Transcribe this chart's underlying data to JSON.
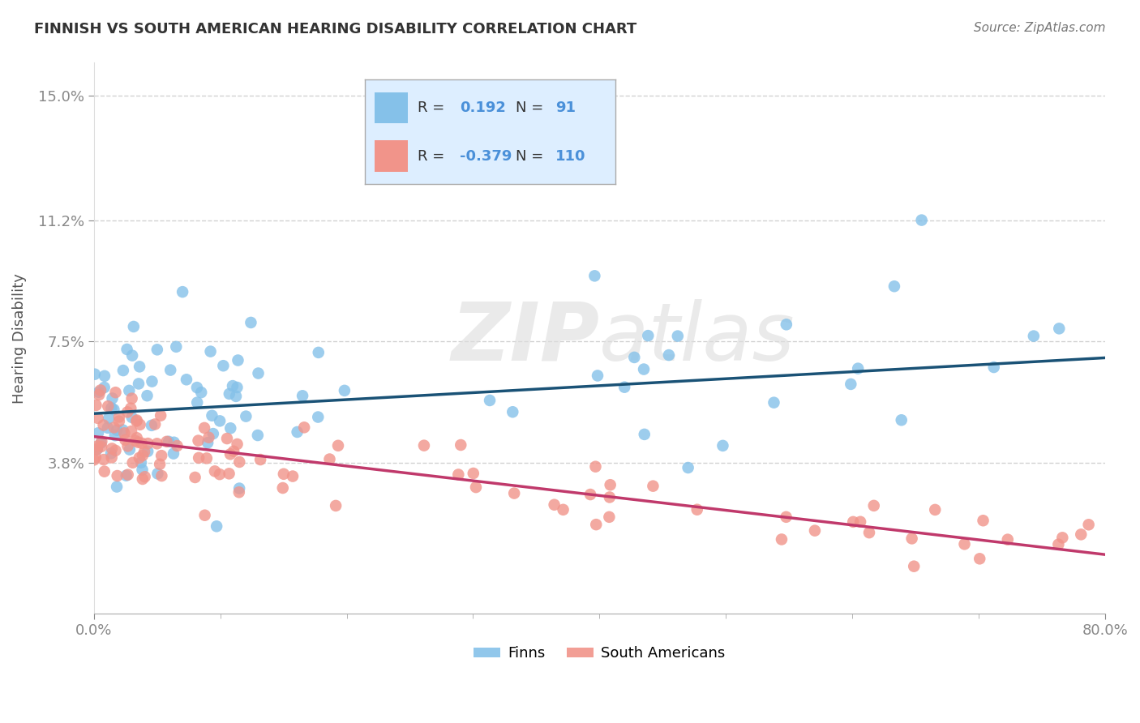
{
  "title": "FINNISH VS SOUTH AMERICAN HEARING DISABILITY CORRELATION CHART",
  "source": "Source: ZipAtlas.com",
  "ylabel": "Hearing Disability",
  "xlim": [
    0.0,
    0.8
  ],
  "ylim": [
    -0.008,
    0.16
  ],
  "finns_R": 0.192,
  "finns_N": 91,
  "south_americans_R": -0.379,
  "south_americans_N": 110,
  "finns_color": "#85c1e9",
  "south_americans_color": "#f1948a",
  "finns_line_color": "#1a5276",
  "south_americans_line_color": "#c0396b",
  "background_color": "#ffffff",
  "grid_color": "#cccccc",
  "title_color": "#333333",
  "axis_label_color": "#4a90d9",
  "legend_box_color": "#ddeeff",
  "ytick_vals": [
    0.038,
    0.075,
    0.112,
    0.15
  ],
  "ytick_labels": [
    "3.8%",
    "7.5%",
    "11.2%",
    "15.0%"
  ],
  "finns_line_y0": 0.053,
  "finns_line_y1": 0.07,
  "sa_line_y0": 0.046,
  "sa_line_y1": 0.01
}
